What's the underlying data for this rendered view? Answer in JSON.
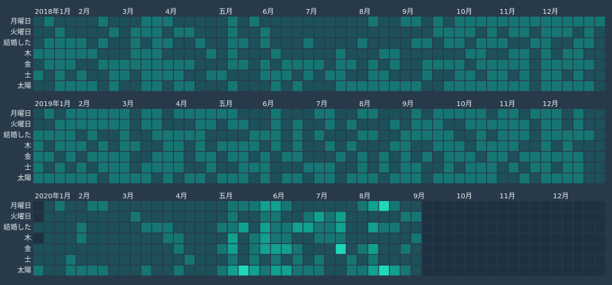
{
  "chart_data": {
    "type": "calendar-heatmap",
    "colors": [
      "#1e3140",
      "#1d5058",
      "#167673",
      "#12a08f",
      "#1fd8b9"
    ],
    "weekdays": [
      "月曜日",
      "火曜日",
      "結婚した",
      "木",
      "金",
      "士",
      "太陽"
    ],
    "years": [
      {
        "months": [
          "2018年1月",
          "2月",
          "3月",
          "4月",
          "五月",
          "6月",
          "7月",
          "8月",
          "9月",
          "10月",
          "11月",
          "12月"
        ],
        "values": [
          [
            1,
            2,
            1,
            1,
            1,
            1,
            2,
            1,
            1,
            1,
            2,
            2,
            2,
            1,
            1,
            1,
            1,
            1,
            2,
            1,
            2,
            1,
            1,
            1,
            1,
            1,
            1,
            1,
            1,
            1,
            1,
            2,
            1,
            1,
            2,
            2,
            1,
            2,
            1,
            2,
            2,
            2,
            2,
            2,
            2,
            2,
            2,
            2,
            2,
            2,
            2,
            2,
            2
          ],
          [
            1,
            1,
            2,
            1,
            1,
            1,
            1,
            2,
            1,
            2,
            2,
            2,
            1,
            2,
            2,
            1,
            1,
            1,
            2,
            1,
            1,
            2,
            1,
            1,
            1,
            1,
            1,
            1,
            1,
            1,
            1,
            1,
            1,
            1,
            1,
            1,
            1,
            2,
            2,
            2,
            2,
            1,
            2,
            1,
            2,
            2,
            1,
            2,
            2,
            2,
            1,
            2,
            1
          ],
          [
            1,
            2,
            2,
            2,
            2,
            1,
            2,
            1,
            1,
            2,
            1,
            2,
            2,
            1,
            1,
            2,
            1,
            1,
            2,
            2,
            1,
            2,
            1,
            1,
            1,
            2,
            1,
            1,
            1,
            1,
            2,
            1,
            1,
            1,
            1,
            2,
            2,
            1,
            2,
            2,
            1,
            2,
            2,
            2,
            1,
            1,
            2,
            2,
            1,
            1,
            2,
            2,
            1
          ],
          [
            2,
            2,
            2,
            2,
            2,
            2,
            1,
            1,
            1,
            2,
            2,
            2,
            1,
            1,
            1,
            1,
            2,
            1,
            2,
            1,
            1,
            1,
            2,
            1,
            1,
            1,
            1,
            1,
            2,
            1,
            1,
            1,
            2,
            2,
            1,
            1,
            1,
            1,
            1,
            1,
            2,
            2,
            1,
            1,
            2,
            2,
            1,
            2,
            1,
            2,
            2,
            1,
            1
          ],
          [
            1,
            2,
            2,
            2,
            1,
            1,
            2,
            2,
            2,
            2,
            2,
            2,
            2,
            2,
            2,
            1,
            1,
            1,
            2,
            2,
            1,
            2,
            1,
            2,
            2,
            2,
            2,
            1,
            2,
            2,
            1,
            2,
            1,
            2,
            1,
            1,
            2,
            2,
            2,
            2,
            1,
            2,
            2,
            2,
            2,
            2,
            1,
            2,
            2,
            2,
            2,
            2,
            1
          ],
          [
            2,
            1,
            2,
            1,
            2,
            1,
            1,
            2,
            2,
            1,
            2,
            2,
            2,
            2,
            1,
            1,
            2,
            2,
            1,
            1,
            1,
            2,
            2,
            2,
            1,
            2,
            1,
            2,
            2,
            1,
            1,
            2,
            2,
            1,
            1,
            1,
            2,
            1,
            1,
            2,
            2,
            1,
            2,
            2,
            1,
            2,
            1,
            2,
            2,
            1,
            2,
            1,
            1
          ],
          [
            1,
            1,
            2,
            2,
            2,
            2,
            1,
            2,
            1,
            1,
            2,
            2,
            1,
            2,
            2,
            1,
            1,
            1,
            2,
            1,
            1,
            1,
            2,
            1,
            2,
            1,
            1,
            1,
            2,
            2,
            2,
            2,
            2,
            2,
            2,
            2,
            1,
            1,
            2,
            2,
            2,
            2,
            2,
            2,
            2,
            2,
            1,
            2,
            2,
            2,
            2,
            2,
            1
          ]
        ]
      },
      {
        "months": [
          "2019年1月",
          "2月",
          "3月",
          "4月",
          "五月",
          "6月",
          "7月",
          "8月",
          "9月",
          "10月",
          "11月",
          "12月"
        ],
        "values": [
          [
            1,
            2,
            1,
            2,
            2,
            2,
            2,
            2,
            2,
            1,
            2,
            2,
            1,
            2,
            2,
            2,
            2,
            2,
            2,
            1,
            1,
            1,
            2,
            1,
            1,
            1,
            2,
            2,
            1,
            1,
            2,
            2,
            1,
            1,
            1,
            2,
            1,
            2,
            2,
            2,
            2,
            2,
            1,
            2,
            2,
            1,
            2,
            2,
            2,
            1,
            2,
            1,
            1
          ],
          [
            1,
            1,
            2,
            2,
            2,
            2,
            2,
            2,
            2,
            1,
            2,
            2,
            1,
            1,
            1,
            2,
            2,
            1,
            2,
            2,
            1,
            1,
            2,
            1,
            2,
            1,
            1,
            2,
            1,
            2,
            1,
            1,
            1,
            2,
            1,
            2,
            2,
            2,
            1,
            1,
            2,
            2,
            2,
            2,
            2,
            2,
            1,
            2,
            2,
            1,
            2,
            1,
            1
          ],
          [
            2,
            2,
            2,
            2,
            1,
            2,
            1,
            1,
            2,
            1,
            1,
            2,
            2,
            2,
            2,
            2,
            1,
            1,
            1,
            1,
            2,
            2,
            2,
            1,
            2,
            1,
            2,
            1,
            1,
            1,
            2,
            2,
            1,
            1,
            2,
            2,
            2,
            2,
            2,
            1,
            1,
            2,
            1,
            2,
            2,
            2,
            1,
            2,
            2,
            2,
            2,
            2,
            1
          ],
          [
            2,
            1,
            2,
            2,
            2,
            1,
            2,
            1,
            2,
            2,
            1,
            1,
            2,
            2,
            1,
            2,
            1,
            2,
            2,
            2,
            2,
            1,
            2,
            1,
            2,
            1,
            1,
            2,
            1,
            2,
            1,
            1,
            1,
            2,
            2,
            1,
            1,
            2,
            2,
            2,
            1,
            2,
            2,
            2,
            2,
            1,
            1,
            2,
            1,
            2,
            1,
            1,
            1
          ],
          [
            2,
            2,
            1,
            2,
            1,
            2,
            2,
            2,
            2,
            1,
            1,
            2,
            2,
            2,
            1,
            2,
            2,
            1,
            2,
            2,
            1,
            2,
            1,
            2,
            2,
            1,
            1,
            1,
            2,
            1,
            2,
            1,
            2,
            1,
            2,
            1,
            2,
            1,
            2,
            2,
            2,
            1,
            2,
            2,
            1,
            2,
            2,
            2,
            2,
            2,
            2,
            1,
            1
          ],
          [
            2,
            1,
            2,
            1,
            2,
            1,
            2,
            2,
            2,
            1,
            2,
            2,
            2,
            2,
            1,
            1,
            2,
            1,
            1,
            2,
            2,
            2,
            1,
            1,
            1,
            2,
            2,
            2,
            1,
            1,
            2,
            1,
            2,
            1,
            2,
            2,
            1,
            1,
            2,
            1,
            2,
            2,
            2,
            1,
            2,
            1,
            2,
            2,
            1,
            2,
            2,
            1,
            1
          ],
          [
            2,
            2,
            2,
            2,
            2,
            2,
            1,
            2,
            2,
            2,
            2,
            1,
            2,
            1,
            2,
            2,
            1,
            2,
            2,
            2,
            1,
            2,
            1,
            2,
            2,
            1,
            2,
            2,
            1,
            2,
            2,
            2,
            1,
            2,
            2,
            2,
            1,
            2,
            2,
            2,
            2,
            2,
            2,
            1,
            1,
            2,
            1,
            2,
            2,
            2,
            2,
            1,
            1
          ]
        ]
      },
      {
        "months": [
          "2020年1月",
          "2月",
          "3月",
          "4月",
          "五月",
          "6月",
          "7月",
          "8月",
          "9月",
          "10月",
          "11月",
          "12月"
        ],
        "values": [
          [
            0,
            1,
            2,
            1,
            1,
            2,
            2,
            1,
            1,
            1,
            1,
            1,
            1,
            1,
            1,
            1,
            1,
            1,
            2,
            2,
            2,
            3,
            3,
            2,
            1,
            1,
            1,
            1,
            1,
            1,
            2,
            3,
            4,
            2,
            1,
            1,
            0,
            0,
            0,
            0,
            0,
            0,
            0,
            0,
            0,
            0,
            0,
            0,
            0,
            0,
            0,
            0,
            0
          ],
          [
            0,
            1,
            1,
            1,
            1,
            1,
            1,
            1,
            1,
            2,
            1,
            1,
            1,
            1,
            1,
            1,
            1,
            1,
            2,
            1,
            1,
            2,
            2,
            1,
            1,
            2,
            3,
            2,
            3,
            1,
            1,
            1,
            1,
            1,
            2,
            2,
            0,
            0,
            0,
            0,
            0,
            0,
            0,
            0,
            0,
            0,
            0,
            0,
            0,
            0,
            0,
            0,
            0
          ],
          [
            1,
            1,
            1,
            1,
            2,
            1,
            1,
            1,
            1,
            1,
            2,
            2,
            2,
            1,
            1,
            1,
            1,
            2,
            2,
            3,
            1,
            3,
            2,
            2,
            3,
            3,
            2,
            2,
            3,
            1,
            1,
            3,
            2,
            2,
            1,
            1,
            0,
            0,
            0,
            0,
            0,
            0,
            0,
            0,
            0,
            0,
            0,
            0,
            0,
            0,
            0,
            0,
            0
          ],
          [
            0,
            1,
            1,
            1,
            2,
            1,
            1,
            1,
            1,
            1,
            1,
            1,
            2,
            2,
            1,
            1,
            1,
            1,
            3,
            1,
            2,
            3,
            2,
            2,
            1,
            1,
            2,
            2,
            2,
            1,
            1,
            1,
            1,
            1,
            1,
            2,
            0,
            0,
            0,
            0,
            0,
            0,
            0,
            0,
            0,
            0,
            0,
            0,
            0,
            0,
            0,
            0,
            0
          ],
          [
            1,
            1,
            1,
            1,
            1,
            1,
            1,
            1,
            1,
            1,
            1,
            1,
            1,
            2,
            1,
            1,
            1,
            2,
            3,
            1,
            2,
            3,
            3,
            3,
            2,
            1,
            1,
            1,
            4,
            1,
            2,
            3,
            1,
            1,
            2,
            1,
            0,
            0,
            0,
            0,
            0,
            0,
            0,
            0,
            0,
            0,
            0,
            0,
            0,
            0,
            0,
            0,
            0
          ],
          [
            1,
            1,
            1,
            2,
            1,
            1,
            1,
            1,
            1,
            1,
            1,
            1,
            1,
            1,
            2,
            1,
            1,
            1,
            2,
            1,
            2,
            1,
            2,
            1,
            2,
            1,
            2,
            1,
            1,
            2,
            1,
            2,
            1,
            1,
            1,
            1,
            0,
            0,
            0,
            0,
            0,
            0,
            0,
            0,
            0,
            0,
            0,
            0,
            0,
            0,
            0,
            0,
            0
          ],
          [
            2,
            1,
            1,
            2,
            2,
            2,
            2,
            1,
            1,
            1,
            2,
            1,
            1,
            2,
            1,
            1,
            1,
            2,
            3,
            4,
            3,
            2,
            3,
            3,
            2,
            2,
            2,
            1,
            1,
            2,
            2,
            3,
            4,
            3,
            2,
            1,
            0,
            0,
            0,
            0,
            0,
            0,
            0,
            0,
            0,
            0,
            0,
            0,
            0,
            0,
            0,
            0,
            0
          ]
        ]
      }
    ]
  }
}
